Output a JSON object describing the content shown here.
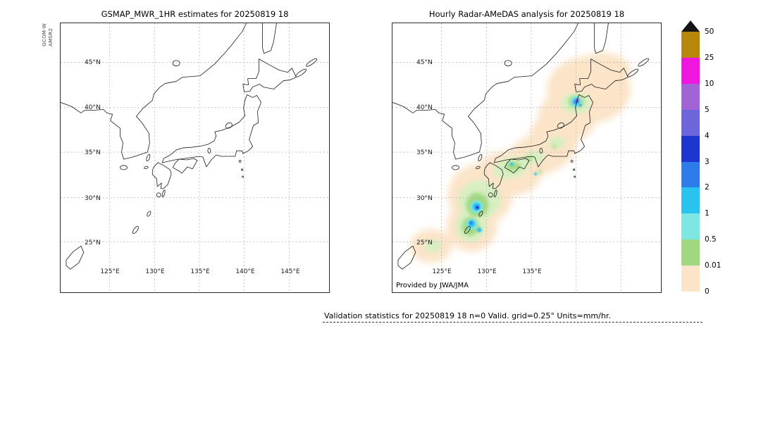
{
  "left_panel": {
    "title": "GSMAP_MWR_1HR estimates for 20250819 18",
    "side_label_line1": "GCOM-W",
    "side_label_line2": "AMSR2",
    "lat_ticks": [
      "45°N",
      "40°N",
      "35°N",
      "30°N",
      "25°N"
    ],
    "lon_ticks": [
      "125°E",
      "130°E",
      "135°E",
      "140°E",
      "145°E"
    ]
  },
  "right_panel": {
    "title": "Hourly Radar-AMeDAS analysis for 20250819 18",
    "lat_ticks": [
      "45°N",
      "40°N",
      "35°N",
      "30°N",
      "25°N"
    ],
    "lon_ticks": [
      "125°E",
      "130°E",
      "135°E"
    ],
    "credit": "Provided by JWA/JMA"
  },
  "colorbar": {
    "tick_labels": [
      "50",
      "25",
      "10",
      "5",
      "4",
      "3",
      "2",
      "1",
      "0.5",
      "0.01",
      "0"
    ],
    "segment_colors_top_to_bottom": [
      "#b8860b",
      "#ef16df",
      "#a263d4",
      "#6d65da",
      "#1d36d0",
      "#2d7ce9",
      "#29c3ef",
      "#7ee7e3",
      "#a0d881",
      "#fbe4c8"
    ],
    "overflow_arrow_color": "#141414",
    "units": "mm/hr"
  },
  "caption": {
    "text": "Validation statistics for 20250819 18  n=0 Valid. grid=0.25° Units=mm/hr."
  }
}
